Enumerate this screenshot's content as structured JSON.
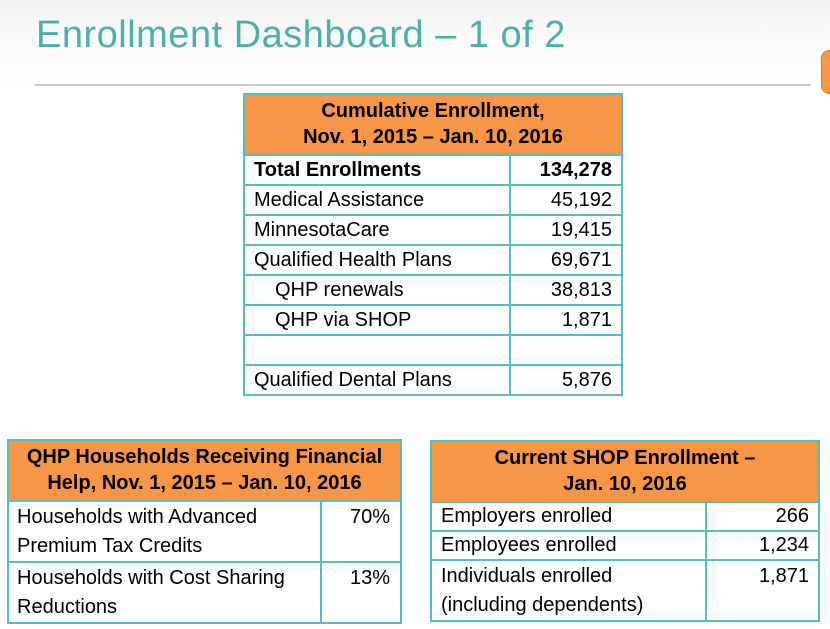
{
  "page": {
    "title": "Enrollment Dashboard – 1 of 2"
  },
  "colors": {
    "title_teal": "#4AB1A8",
    "table_border_teal": "#55BFB9",
    "header_orange": "#F79646",
    "divider_gray": "#CBCBCB"
  },
  "cumulative_table": {
    "header_line1": "Cumulative Enrollment,",
    "header_line2": "Nov. 1, 2015 – Jan. 10, 2016",
    "rows": [
      {
        "label": "Total Enrollments",
        "value": "134,278"
      },
      {
        "label": "Medical Assistance",
        "value": "45,192"
      },
      {
        "label": "MinnesotaCare",
        "value": "19,415"
      },
      {
        "label": "Qualified Health Plans",
        "value": "69,671"
      },
      {
        "label": "QHP renewals",
        "value": "38,813"
      },
      {
        "label": "QHP via SHOP",
        "value": "1,871"
      },
      {
        "label": "",
        "value": ""
      },
      {
        "label": "Qualified Dental Plans",
        "value": "5,876"
      }
    ]
  },
  "financial_help_table": {
    "header_line1": "QHP Households Receiving Financial",
    "header_line2": "Help, Nov. 1, 2015 – Jan. 10, 2016",
    "rows": [
      {
        "label_lines": [
          "Households with Advanced",
          "Premium Tax Credits"
        ],
        "value": "70%"
      },
      {
        "label_lines": [
          "Households with Cost Sharing",
          "Reductions"
        ],
        "value": "13%"
      }
    ]
  },
  "shop_table": {
    "header_line1": "Current SHOP Enrollment –",
    "header_line2": "Jan. 10, 2016",
    "rows": [
      {
        "label": "Employers enrolled",
        "value": "266"
      },
      {
        "label": "Employees enrolled",
        "value": "1,234"
      },
      {
        "label_lines": [
          "Individuals enrolled",
          "(including dependents)"
        ],
        "value": "1,871"
      }
    ]
  }
}
